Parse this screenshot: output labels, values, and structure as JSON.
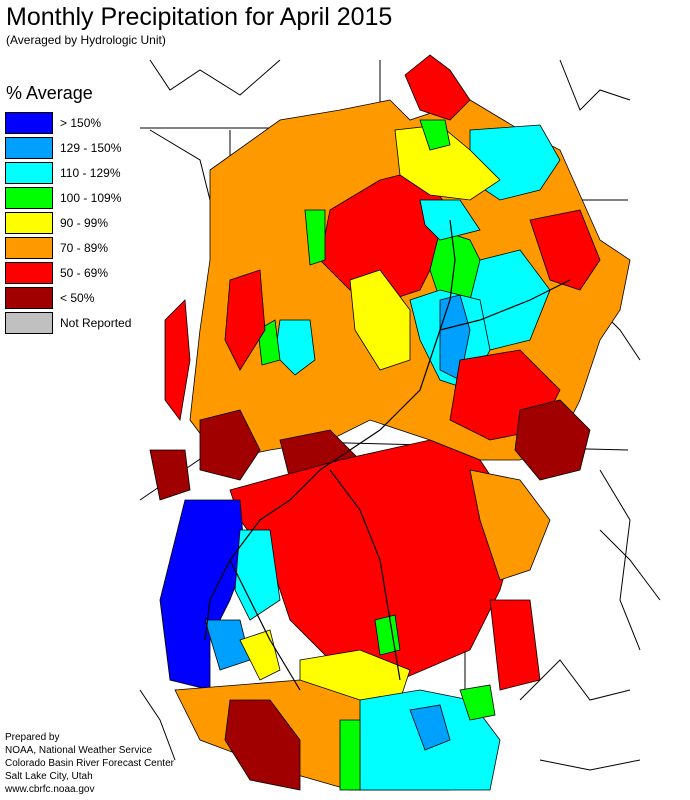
{
  "title": "Monthly Precipitation for April 2015",
  "subtitle": "(Averaged by Hydrologic Unit)",
  "legend": {
    "title": "% Average",
    "items": [
      {
        "label": "> 150%",
        "color": "#0000ff"
      },
      {
        "label": "129 - 150%",
        "color": "#00a0ff"
      },
      {
        "label": "110 - 129%",
        "color": "#00ffff"
      },
      {
        "label": "100 - 109%",
        "color": "#00ff00"
      },
      {
        "label": "90 - 99%",
        "color": "#ffff00"
      },
      {
        "label": "70 - 89%",
        "color": "#ff9900"
      },
      {
        "label": "50 - 69%",
        "color": "#ff0000"
      },
      {
        "label": "< 50%",
        "color": "#a00000"
      },
      {
        "label": "Not Reported",
        "color": "#c0c0c0"
      }
    ]
  },
  "credits": {
    "line1": "Prepared by",
    "line2": "NOAA, National Weather Service",
    "line3": "Colorado Basin River Forecast Center",
    "line4": "Salt Lake City, Utah",
    "line5": "www.cbrfc.noaa.gov"
  }
}
